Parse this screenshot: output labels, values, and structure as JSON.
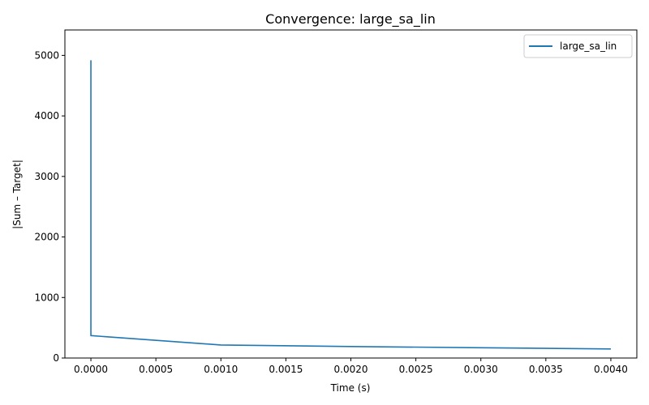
{
  "chart_data": {
    "type": "line",
    "title": "Convergence: large_sa_lin",
    "xlabel": "Time (s)",
    "ylabel": "|Sum – Target|",
    "xlim": [
      -0.0002,
      0.0042
    ],
    "ylim": [
      0,
      5420
    ],
    "xticks": [
      0.0,
      0.0005,
      0.001,
      0.0015,
      0.002,
      0.0025,
      0.003,
      0.0035,
      0.004
    ],
    "xtick_labels": [
      "0.0000",
      "0.0005",
      "0.0010",
      "0.0015",
      "0.0020",
      "0.0025",
      "0.0030",
      "0.0035",
      "0.0040"
    ],
    "yticks": [
      0,
      1000,
      2000,
      3000,
      4000,
      5000
    ],
    "ytick_labels": [
      "0",
      "1000",
      "2000",
      "3000",
      "4000",
      "5000"
    ],
    "grid": false,
    "legend_position": "top-right",
    "series": [
      {
        "name": "large_sa_lin",
        "color": "#1f77b4",
        "x": [
          0.0,
          0.0,
          0.001,
          0.002,
          0.003,
          0.004
        ],
        "y": [
          4920,
          370,
          215,
          190,
          170,
          150
        ]
      }
    ]
  }
}
